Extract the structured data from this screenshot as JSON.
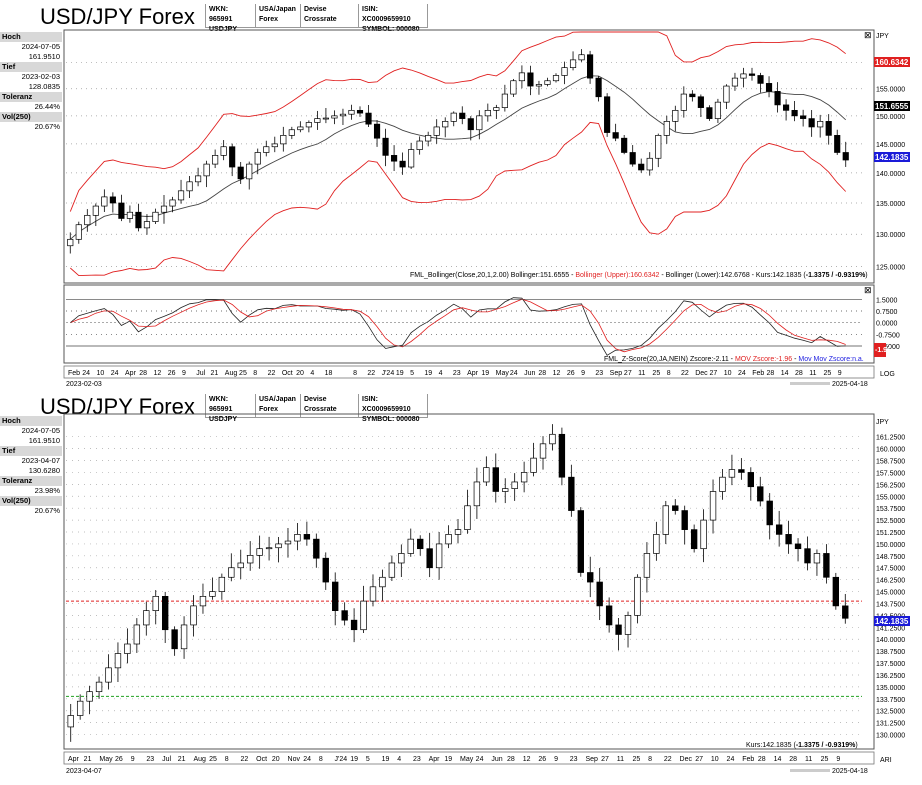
{
  "panel1": {
    "title": "USD/JPY Forex",
    "info": [
      {
        "label": "WKN: 965991",
        "value": "USDJPY"
      },
      {
        "label": "USA/Japan",
        "value": "Forex"
      },
      {
        "label": "Devise Crossrate",
        "value": ""
      },
      {
        "label": "ISIN: XC0009659910",
        "value": "SYMBOL: 000080"
      }
    ],
    "side": {
      "hoch_label": "Hoch",
      "hoch_date": "2024-07-05",
      "hoch_val": "161.9510",
      "tief_label": "Tief",
      "tief_date": "2023-02-03",
      "tief_val": "128.0835",
      "tol_label": "Toleranz",
      "tol_val": "26.44%",
      "vol_label": "Vol(250)",
      "vol_val": "20.67%"
    },
    "currency": "JPY",
    "axis_badges": {
      "upper": "160.6342",
      "mid": "151.6555",
      "last": "142.1835"
    },
    "legend": "FML_Bollinger(Close,20,1,2.00) Bollinger:151.6555 - Bollinger (Upper):160.6342 - Bollinger (Lower):142.6768 - Kurs:142.1835 (-1.3375 / -0.9319%)",
    "legend_parts": {
      "a": "FML_Bollinger(Close,20,1,2.00) Bollinger:151.6555 - ",
      "b": "Bollinger (Upper):160.6342",
      "c": " - Bollinger (Lower):142.6768 - Kurs:142.1835 (",
      "d": "-1.3375 / -0.9319%",
      "e": ")"
    },
    "zscore_legend": {
      "a": "FML_Z-Score(20,JA,NEIN) Zscore:-2.11 - ",
      "b": "MOV Zscore:-1.96",
      "c": " - ",
      "d": "Mov Mov Zscore:n.a."
    },
    "zscore_badge": "-1.96",
    "start_date": "2023-02-03",
    "end_date": "2025-04-18",
    "scale_mode": "LOG",
    "x_labels": [
      "Feb",
      "24",
      "10",
      "24",
      "Apr",
      "28",
      "12",
      "26",
      "9",
      "Jul",
      "21",
      "Aug",
      "25",
      "8",
      "22",
      "Oct",
      "20",
      "4",
      "18",
      "",
      "8",
      "22",
      "J'24",
      "19",
      "5",
      "19",
      "4",
      "23",
      "Apr",
      "19",
      "May",
      "24",
      "Jun",
      "28",
      "12",
      "26",
      "9",
      "23",
      "Sep",
      "27",
      "11",
      "25",
      "8",
      "22",
      "Dec",
      "27",
      "10",
      "24",
      "Feb",
      "28",
      "14",
      "28",
      "11",
      "25",
      "9"
    ]
  },
  "panel2": {
    "title": "USD/JPY Forex",
    "info": [
      {
        "label": "WKN: 965991",
        "value": "USDJPY"
      },
      {
        "label": "USA/Japan",
        "value": "Forex"
      },
      {
        "label": "Devise Crossrate",
        "value": ""
      },
      {
        "label": "ISIN: XC0009659910",
        "value": "SYMBOL: 000080"
      }
    ],
    "side": {
      "hoch_label": "Hoch",
      "hoch_date": "2024-07-05",
      "hoch_val": "161.9510",
      "tief_label": "Tief",
      "tief_date": "2023-04-07",
      "tief_val": "130.6280",
      "tol_label": "Toleranz",
      "tol_val": "23.98%",
      "vol_label": "Vol(250)",
      "vol_val": "20.67%"
    },
    "currency": "JPY",
    "axis_badge": "142.1835",
    "legend_a": "Kurs:142.1835 (",
    "legend_b": "-1.3375 / -0.9319%",
    "legend_c": ")",
    "start_date": "2023-04-07",
    "end_date": "2025-04-18",
    "scale_mode": "ARI",
    "x_labels": [
      "Apr",
      "21",
      "May",
      "26",
      "9",
      "23",
      "Jul",
      "21",
      "Aug",
      "25",
      "8",
      "22",
      "Oct",
      "20",
      "Nov",
      "24",
      "8",
      "J'24",
      "19",
      "5",
      "19",
      "4",
      "23",
      "Apr",
      "19",
      "May",
      "24",
      "Jun",
      "28",
      "12",
      "26",
      "9",
      "23",
      "Sep",
      "27",
      "11",
      "25",
      "8",
      "22",
      "Dec",
      "27",
      "10",
      "24",
      "Feb",
      "28",
      "14",
      "28",
      "11",
      "25",
      "9"
    ]
  },
  "chart_data": [
    {
      "type": "candlestick",
      "title": "USD/JPY Forex",
      "ylabel": "JPY",
      "ylim": [
        123,
        166
      ],
      "yticks": [
        125,
        130,
        135,
        140,
        145,
        150,
        155,
        160
      ],
      "scale": "log",
      "weekly_close": [
        129.2,
        131.5,
        133.0,
        134.5,
        136.0,
        135.0,
        132.5,
        133.5,
        131.0,
        132.0,
        133.5,
        134.5,
        135.5,
        137.0,
        138.5,
        139.5,
        141.5,
        143.0,
        144.5,
        141.0,
        139.0,
        141.5,
        143.5,
        144.5,
        145.0,
        146.5,
        147.5,
        148.0,
        148.8,
        149.5,
        149.6,
        150.0,
        150.3,
        151.0,
        150.5,
        148.5,
        146.0,
        143.0,
        142.0,
        141.0,
        144.0,
        145.5,
        146.5,
        148.0,
        149.0,
        150.5,
        149.5,
        147.5,
        150.0,
        151.0,
        151.5,
        154.0,
        156.5,
        158.0,
        155.5,
        155.8,
        156.5,
        157.5,
        159.0,
        160.5,
        161.5,
        157.0,
        153.5,
        147.0,
        146.0,
        143.5,
        141.5,
        140.5,
        142.5,
        146.5,
        149.0,
        151.0,
        154.0,
        153.5,
        151.5,
        149.5,
        152.5,
        155.5,
        157.0,
        157.8,
        157.5,
        156.0,
        154.5,
        152.0,
        151.0,
        150.0,
        149.5,
        148.0,
        149.0,
        146.5,
        143.5,
        142.2
      ],
      "bollinger": {
        "mid": 151.6555,
        "upper": 160.6342,
        "lower": 142.6768
      },
      "kurs": 142.1835,
      "change": -1.3375,
      "change_pct": -0.9319
    },
    {
      "type": "line",
      "title": "FML_Z-Score(20,JA,NEIN)",
      "ylim": [
        -2.4,
        2.1
      ],
      "yticks": [
        1.5,
        0.75,
        0.0,
        -0.75,
        -1.5
      ],
      "series": [
        {
          "name": "Zscore",
          "color": "#222222",
          "last": -2.11
        },
        {
          "name": "MOV Zscore",
          "color": "#e02020",
          "last": -1.96
        },
        {
          "name": "Mov Mov Zscore",
          "color": "#2020e0",
          "last": null
        }
      ]
    },
    {
      "type": "candlestick",
      "title": "USD/JPY Forex",
      "ylabel": "JPY",
      "ylim": [
        128.8,
        163.0
      ],
      "yticks": [
        130.0,
        131.25,
        132.5,
        133.75,
        135.0,
        136.25,
        137.5,
        138.75,
        140.0,
        141.25,
        142.5,
        143.75,
        145.0,
        146.25,
        147.5,
        148.75,
        150.0,
        151.25,
        152.5,
        153.75,
        155.0,
        156.25,
        157.5,
        158.75,
        160.0,
        161.25
      ],
      "scale": "linear",
      "hlines": [
        {
          "value": 144.0,
          "color": "#e02020"
        },
        {
          "value": 134.0,
          "color": "#20a020"
        }
      ],
      "kurs": 142.1835
    }
  ],
  "colors": {
    "bollinger_band": "#e02020",
    "ma": "#444444",
    "badge_red": "#e02020",
    "badge_blue": "#1a1ad8",
    "badge_black": "#000000"
  }
}
